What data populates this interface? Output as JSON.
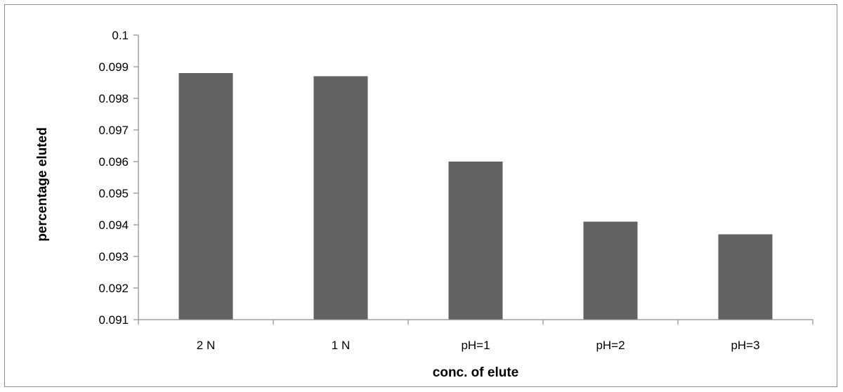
{
  "chart_data": {
    "type": "bar",
    "title": "",
    "xlabel": "conc. of elute",
    "ylabel": "percentage  eluted",
    "categories": [
      "2 N",
      "1 N",
      "pH=1",
      "pH=2",
      "pH=3"
    ],
    "values": [
      0.0988,
      0.0987,
      0.096,
      0.0941,
      0.0937
    ],
    "ylim": [
      0.091,
      0.1
    ],
    "ytick_step": 0.001,
    "yticks": [
      "0.091",
      "0.092",
      "0.093",
      "0.094",
      "0.095",
      "0.096",
      "0.097",
      "0.098",
      "0.099",
      "0.1"
    ],
    "grid": false,
    "legend": "none",
    "bar_color": "#626262",
    "axis_color": "#8c8c8c"
  }
}
